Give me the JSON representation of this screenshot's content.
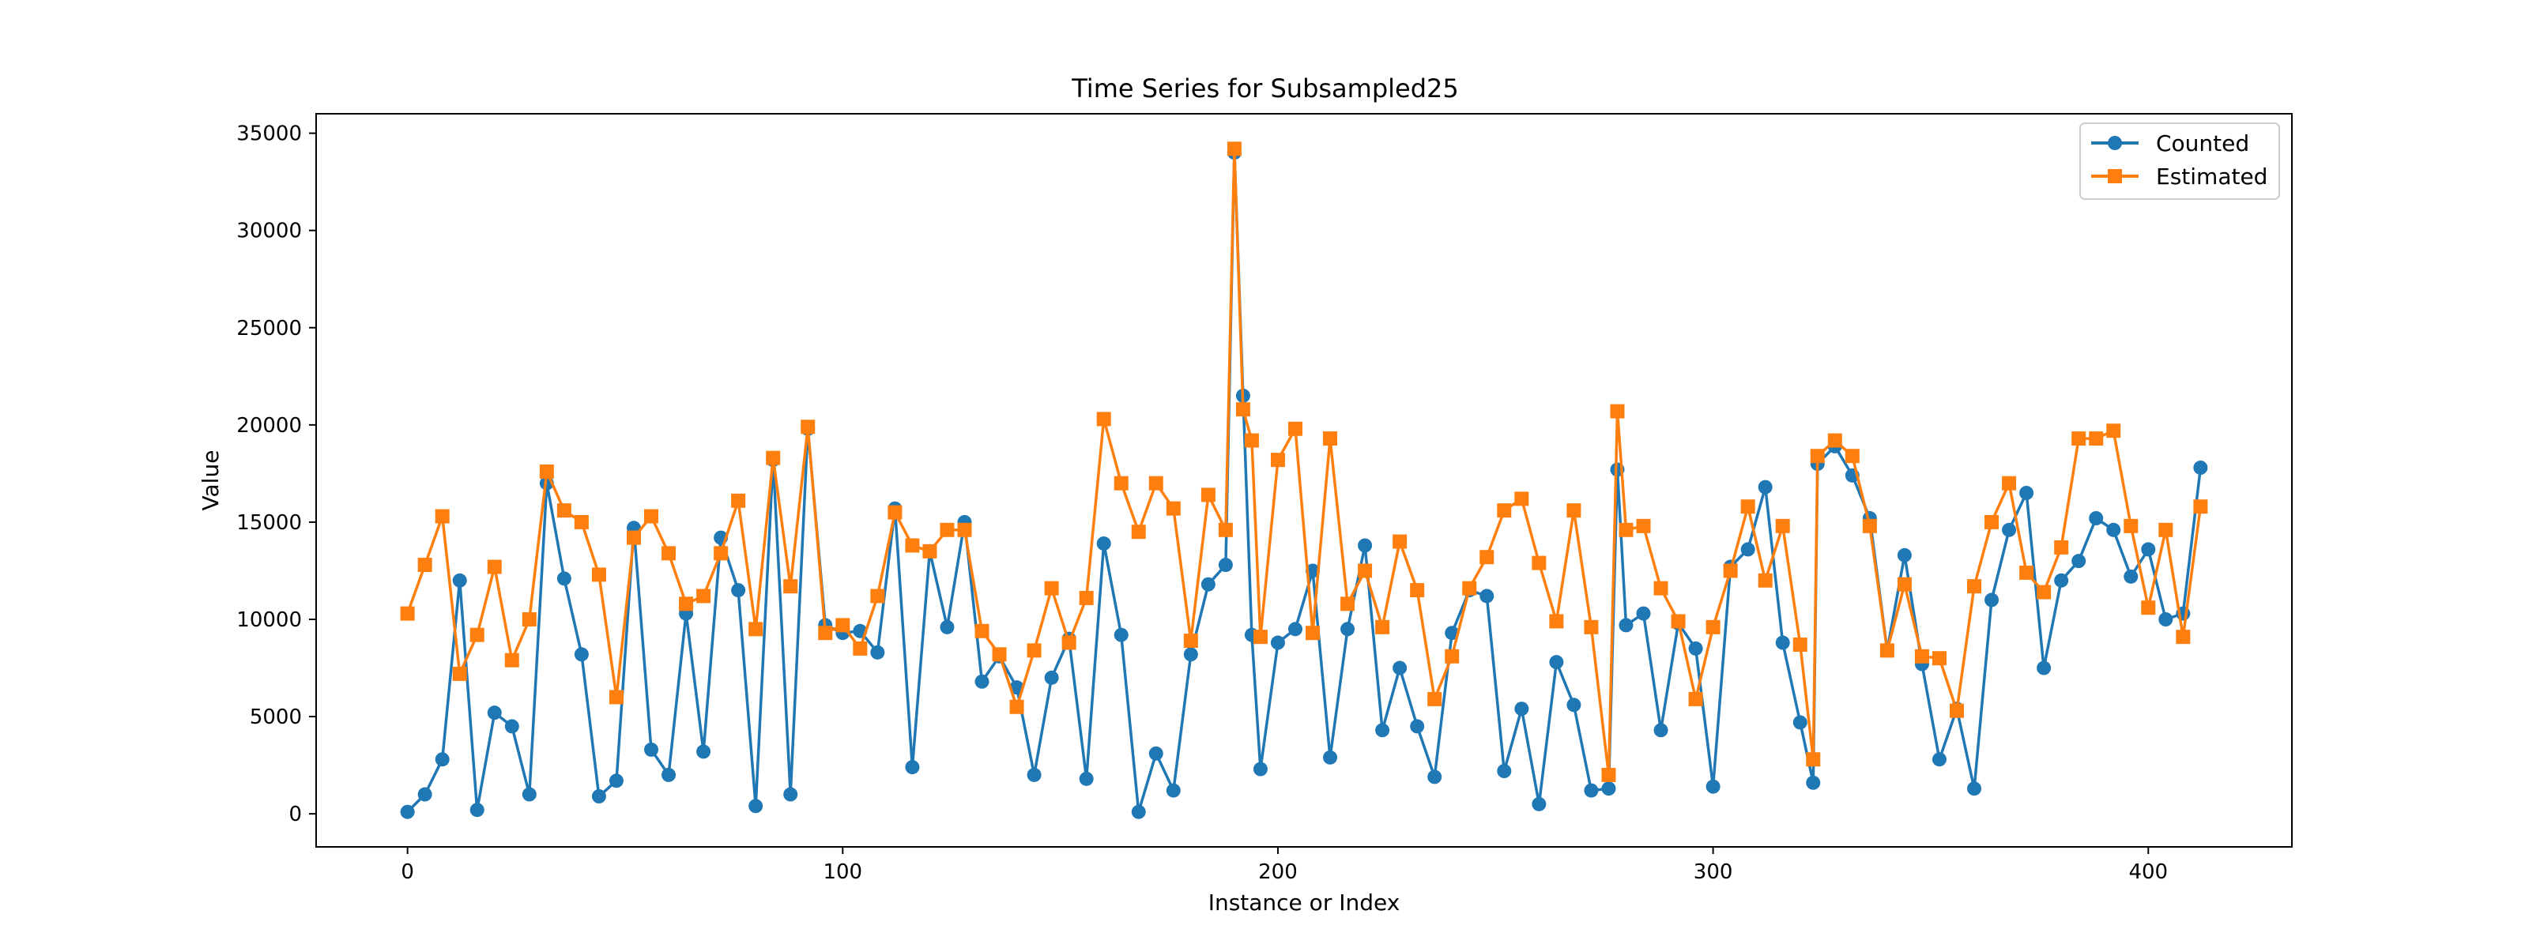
{
  "chart_data": {
    "type": "line",
    "title": "Time Series for Subsampled25",
    "xlabel": "Instance or Index",
    "ylabel": "Value",
    "xlim": [
      -21,
      433
    ],
    "ylim": [
      -1700,
      36000
    ],
    "xticks": [
      0,
      100,
      200,
      300,
      400
    ],
    "yticks": [
      0,
      5000,
      10000,
      15000,
      20000,
      25000,
      30000,
      35000
    ],
    "grid": false,
    "legend_position": "top-right",
    "series": [
      {
        "name": "Counted",
        "marker": "circle",
        "color": "#1f77b4",
        "x": [
          0,
          4,
          8,
          12,
          16,
          20,
          24,
          28,
          32,
          36,
          40,
          44,
          48,
          52,
          56,
          60,
          64,
          68,
          72,
          76,
          80,
          84,
          88,
          92,
          96,
          100,
          104,
          108,
          112,
          116,
          120,
          124,
          128,
          132,
          136,
          140,
          144,
          148,
          152,
          156,
          160,
          164,
          168,
          172,
          176,
          180,
          184,
          188,
          190,
          192,
          194,
          196,
          200,
          204,
          208,
          212,
          216,
          220,
          224,
          228,
          232,
          236,
          240,
          244,
          248,
          252,
          256,
          260,
          264,
          268,
          272,
          276,
          278,
          280,
          284,
          288,
          292,
          296,
          300,
          304,
          308,
          312,
          316,
          320,
          323,
          324,
          328,
          332,
          336,
          340,
          344,
          348,
          352,
          356,
          360,
          364,
          368,
          372,
          376,
          380,
          384,
          388,
          392,
          396,
          400,
          404,
          408,
          412
        ],
        "values": [
          100,
          1000,
          2800,
          12000,
          200,
          5200,
          4500,
          1000,
          17000,
          12100,
          8200,
          900,
          1700,
          14700,
          3300,
          2000,
          10300,
          3200,
          14200,
          11500,
          400,
          18200,
          1000,
          19800,
          9700,
          9300,
          9400,
          8300,
          15700,
          2400,
          13500,
          9600,
          15000,
          6800,
          8100,
          6500,
          2000,
          7000,
          9000,
          1800,
          13900,
          9200,
          100,
          3100,
          1200,
          8200,
          11800,
          12800,
          34000,
          21500,
          9200,
          2300,
          8800,
          9500,
          12500,
          2900,
          9500,
          13800,
          4300,
          7500,
          4500,
          1900,
          9300,
          11500,
          11200,
          2200,
          5400,
          500,
          7800,
          5600,
          1200,
          1300,
          17700,
          9700,
          10300,
          4300,
          9800,
          8500,
          1400,
          12700,
          13600,
          16800,
          8800,
          4700,
          1600,
          18000,
          18900,
          17400,
          15200,
          8400,
          13300,
          7700,
          2800,
          5400,
          1300,
          11000,
          14600,
          16500,
          7500,
          12000,
          13000,
          15200,
          14600,
          12200,
          13600,
          10000,
          10300,
          17800
        ]
      },
      {
        "name": "Estimated",
        "marker": "square",
        "color": "#ff7f0e",
        "x": [
          0,
          4,
          8,
          12,
          16,
          20,
          24,
          28,
          32,
          36,
          40,
          44,
          48,
          52,
          56,
          60,
          64,
          68,
          72,
          76,
          80,
          84,
          88,
          92,
          96,
          100,
          104,
          108,
          112,
          116,
          120,
          124,
          128,
          132,
          136,
          140,
          144,
          148,
          152,
          156,
          160,
          164,
          168,
          172,
          176,
          180,
          184,
          188,
          190,
          192,
          194,
          196,
          200,
          204,
          208,
          212,
          216,
          220,
          224,
          228,
          232,
          236,
          240,
          244,
          248,
          252,
          256,
          260,
          264,
          268,
          272,
          276,
          278,
          280,
          284,
          288,
          292,
          296,
          300,
          304,
          308,
          312,
          316,
          320,
          323,
          324,
          328,
          332,
          336,
          340,
          344,
          348,
          352,
          356,
          360,
          364,
          368,
          372,
          376,
          380,
          384,
          388,
          392,
          396,
          400,
          404,
          408,
          412
        ],
        "values": [
          10300,
          12800,
          15300,
          7200,
          9200,
          12700,
          7900,
          10000,
          17600,
          15600,
          15000,
          12300,
          6000,
          14200,
          15300,
          13400,
          10800,
          11200,
          13400,
          16100,
          9500,
          18300,
          11700,
          19900,
          9300,
          9700,
          8500,
          11200,
          15500,
          13800,
          13500,
          14600,
          14600,
          9400,
          8200,
          5500,
          8400,
          11600,
          8800,
          11100,
          20300,
          17000,
          14500,
          17000,
          15700,
          8900,
          16400,
          14600,
          34200,
          20800,
          19200,
          9100,
          18200,
          19800,
          9300,
          19300,
          10800,
          12500,
          9600,
          14000,
          11500,
          5900,
          8100,
          11600,
          13200,
          15600,
          16200,
          12900,
          9900,
          15600,
          9600,
          2000,
          20700,
          14600,
          14800,
          11600,
          9900,
          5900,
          9600,
          12500,
          15800,
          12000,
          14800,
          8700,
          2800,
          18400,
          19200,
          18400,
          14800,
          8400,
          11800,
          8100,
          8000,
          5300,
          11700,
          15000,
          17000,
          12400,
          11400,
          13700,
          19300,
          19300,
          19700,
          14800,
          10600,
          14600,
          9100,
          15800
        ]
      }
    ]
  }
}
